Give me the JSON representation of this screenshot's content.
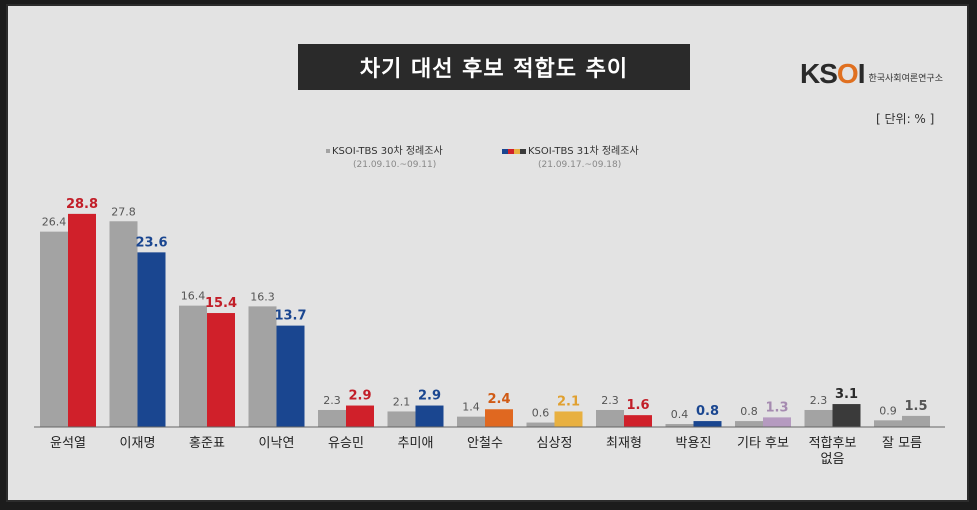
{
  "chart_data": {
    "type": "bar",
    "title": "차기 대선 후보 적합도 추이",
    "unit_label": "[ 단위: % ]",
    "brand": {
      "logo_text_prefix": "KS",
      "logo_text_o": "O",
      "logo_text_suffix": "I",
      "logo_subtitle": "한국사회여론연구소"
    },
    "legend": [
      {
        "label": "KSOI-TBS 30차 정례조사",
        "period": "(21.09.10.~09.11)",
        "color": "#a3a3a3"
      },
      {
        "label": "KSOI-TBS 31차 정례조사",
        "period": "(21.09.17.~09.18)",
        "color": "#1a4690"
      }
    ],
    "categories": [
      "윤석열",
      "이재명",
      "홍준표",
      "이낙연",
      "유승민",
      "추미애",
      "안철수",
      "심상정",
      "최재형",
      "박용진",
      "기타 후보",
      "적합후보\n없음",
      "잘 모름"
    ],
    "series": [
      {
        "name": "KSOI-TBS 30차 정례조사",
        "values": [
          26.4,
          27.8,
          16.4,
          16.3,
          2.3,
          2.1,
          1.4,
          0.6,
          2.3,
          0.4,
          0.8,
          2.3,
          0.9
        ]
      },
      {
        "name": "KSOI-TBS 31차 정례조사",
        "values": [
          28.8,
          23.6,
          15.4,
          13.7,
          2.9,
          2.9,
          2.4,
          2.1,
          1.6,
          0.8,
          1.3,
          3.1,
          1.5
        ]
      }
    ],
    "series1_colors": [
      "#a3a3a3",
      "#a3a3a3",
      "#a3a3a3",
      "#a3a3a3",
      "#a3a3a3",
      "#a3a3a3",
      "#a3a3a3",
      "#a3a3a3",
      "#a3a3a3",
      "#a3a3a3",
      "#a3a3a3",
      "#a3a3a3",
      "#a3a3a3"
    ],
    "series2_colors": [
      "#d0202a",
      "#1a4690",
      "#d0202a",
      "#1a4690",
      "#d0202a",
      "#1a4690",
      "#e06820",
      "#e8b040",
      "#d0202a",
      "#1a4690",
      "#b59ac0",
      "#3a3a3a",
      "#a3a3a3"
    ],
    "series1_label_color": "#555555",
    "series2_label_colors": [
      "#c21e28",
      "#1a4690",
      "#c21e28",
      "#1a4690",
      "#c21e28",
      "#1a4690",
      "#d05a14",
      "#e0a030",
      "#c21e28",
      "#1a4690",
      "#a58ab0",
      "#2a2a2a",
      "#555555"
    ],
    "ylim": [
      0,
      30
    ]
  }
}
